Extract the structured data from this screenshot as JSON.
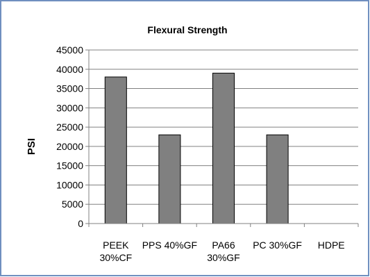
{
  "chart_data": {
    "type": "bar",
    "title": "Flexural Strength",
    "xlabel": "",
    "ylabel": "PSI",
    "categories": [
      [
        "PEEK",
        "30%CF"
      ],
      [
        "PPS 40%GF"
      ],
      [
        "PA66",
        "30%GF"
      ],
      [
        "PC 30%GF"
      ],
      [
        "HDPE"
      ]
    ],
    "values": [
      38000,
      23000,
      39000,
      23000,
      0
    ],
    "ylim": [
      0,
      45000
    ],
    "yticks": [
      0,
      5000,
      10000,
      15000,
      20000,
      25000,
      30000,
      35000,
      40000,
      45000
    ],
    "grid": true,
    "legend": "none",
    "colors": {
      "bar_fill": "#808080",
      "bar_stroke": "#000000",
      "grid": "#808080",
      "frame": "#6f8fbf",
      "axis": "#808080"
    }
  }
}
